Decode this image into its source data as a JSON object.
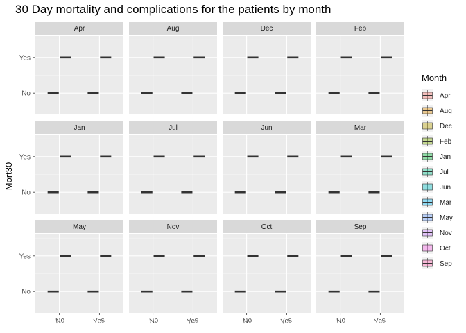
{
  "chart_data": {
    "type": "boxplot",
    "title": "30 Day mortality and complications for the patients by month",
    "xlabel": "",
    "ylabel": "Mort30",
    "x_categories": [
      "No",
      "Yes"
    ],
    "y_categories": [
      "No",
      "Yes"
    ],
    "facet_by": "Month",
    "panels": [
      {
        "label": "Apr",
        "boxes": [
          {
            "x": "No",
            "fill": "No"
          },
          {
            "x": "No",
            "fill": "Yes"
          },
          {
            "x": "Yes",
            "fill": "No"
          },
          {
            "x": "Yes",
            "fill": "Yes"
          }
        ]
      },
      {
        "label": "Aug",
        "boxes": [
          {
            "x": "No",
            "fill": "No"
          },
          {
            "x": "No",
            "fill": "Yes"
          },
          {
            "x": "Yes",
            "fill": "No"
          },
          {
            "x": "Yes",
            "fill": "Yes"
          }
        ]
      },
      {
        "label": "Dec",
        "boxes": [
          {
            "x": "No",
            "fill": "No"
          },
          {
            "x": "No",
            "fill": "Yes"
          },
          {
            "x": "Yes",
            "fill": "No"
          },
          {
            "x": "Yes",
            "fill": "Yes"
          }
        ]
      },
      {
        "label": "Feb",
        "boxes": [
          {
            "x": "No",
            "fill": "No"
          },
          {
            "x": "No",
            "fill": "Yes"
          },
          {
            "x": "Yes",
            "fill": "No"
          },
          {
            "x": "Yes",
            "fill": "Yes"
          }
        ]
      },
      {
        "label": "Jan",
        "boxes": [
          {
            "x": "No",
            "fill": "No"
          },
          {
            "x": "No",
            "fill": "Yes"
          },
          {
            "x": "Yes",
            "fill": "No"
          },
          {
            "x": "Yes",
            "fill": "Yes"
          }
        ]
      },
      {
        "label": "Jul",
        "boxes": [
          {
            "x": "No",
            "fill": "No"
          },
          {
            "x": "No",
            "fill": "Yes"
          },
          {
            "x": "Yes",
            "fill": "No"
          },
          {
            "x": "Yes",
            "fill": "Yes"
          }
        ]
      },
      {
        "label": "Jun",
        "boxes": [
          {
            "x": "No",
            "fill": "No"
          },
          {
            "x": "No",
            "fill": "Yes"
          },
          {
            "x": "Yes",
            "fill": "No"
          },
          {
            "x": "Yes",
            "fill": "Yes"
          }
        ]
      },
      {
        "label": "Mar",
        "boxes": [
          {
            "x": "No",
            "fill": "No"
          },
          {
            "x": "No",
            "fill": "Yes"
          },
          {
            "x": "Yes",
            "fill": "No"
          },
          {
            "x": "Yes",
            "fill": "Yes"
          }
        ]
      },
      {
        "label": "May",
        "boxes": [
          {
            "x": "No",
            "fill": "No"
          },
          {
            "x": "No",
            "fill": "Yes"
          },
          {
            "x": "Yes",
            "fill": "No"
          },
          {
            "x": "Yes",
            "fill": "Yes"
          }
        ]
      },
      {
        "label": "Nov",
        "boxes": [
          {
            "x": "No",
            "fill": "No"
          },
          {
            "x": "No",
            "fill": "Yes"
          },
          {
            "x": "Yes",
            "fill": "No"
          },
          {
            "x": "Yes",
            "fill": "Yes"
          }
        ]
      },
      {
        "label": "Oct",
        "boxes": [
          {
            "x": "No",
            "fill": "No"
          },
          {
            "x": "No",
            "fill": "Yes"
          },
          {
            "x": "Yes",
            "fill": "No"
          },
          {
            "x": "Yes",
            "fill": "Yes"
          }
        ]
      },
      {
        "label": "Sep",
        "boxes": [
          {
            "x": "No",
            "fill": "No"
          },
          {
            "x": "No",
            "fill": "Yes"
          },
          {
            "x": "Yes",
            "fill": "No"
          },
          {
            "x": "Yes",
            "fill": "Yes"
          }
        ]
      }
    ],
    "legend": {
      "title": "Month",
      "placement": "right",
      "items": [
        {
          "label": "Apr",
          "color": "#F8766D"
        },
        {
          "label": "Aug",
          "color": "#DE8C00"
        },
        {
          "label": "Dec",
          "color": "#B79F00"
        },
        {
          "label": "Feb",
          "color": "#7CAE00"
        },
        {
          "label": "Jan",
          "color": "#00BA38"
        },
        {
          "label": "Jul",
          "color": "#00C08B"
        },
        {
          "label": "Jun",
          "color": "#00BFC4"
        },
        {
          "label": "Mar",
          "color": "#00B4F0"
        },
        {
          "label": "May",
          "color": "#619CFF"
        },
        {
          "label": "Nov",
          "color": "#C77CFF"
        },
        {
          "label": "Oct",
          "color": "#F564E3"
        },
        {
          "label": "Sep",
          "color": "#FF64B0"
        }
      ]
    },
    "colors": {
      "panel_bg": "#EBEBEB",
      "strip_bg": "#D9D9D9",
      "grid": "#FFFFFF",
      "median": "#333333",
      "tick": "#333333"
    }
  }
}
